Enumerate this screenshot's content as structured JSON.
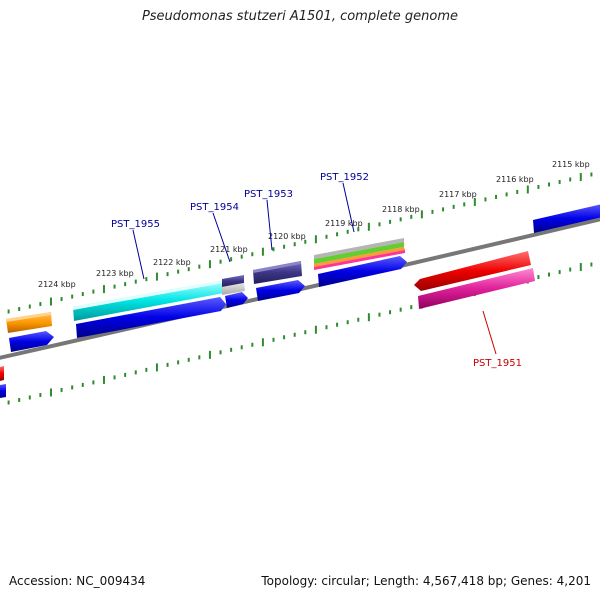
{
  "title": "Pseudomonas stutzeri A1501, complete genome",
  "footer": {
    "accession": "Accession: NC_009434",
    "summary": "Topology: circular; Length: 4,567,418 bp; Genes: 4,201"
  },
  "colors": {
    "backbone": "#777777",
    "ticks": "#2e8b2e",
    "forward_label": "#000099",
    "reverse_label": "#cc0000"
  },
  "scale_labels": [
    "2115 kbp",
    "2116 kbp",
    "2117 kbp",
    "2118 kbp",
    "2119 kbp",
    "2120 kbp",
    "2121 kbp",
    "2122 kbp",
    "2123 kbp",
    "2124 kbp"
  ],
  "gene_labels": [
    {
      "text": "PST_1955",
      "strand": "forward"
    },
    {
      "text": "PST_1954",
      "strand": "forward"
    },
    {
      "text": "PST_1953",
      "strand": "forward"
    },
    {
      "text": "PST_1952",
      "strand": "forward"
    },
    {
      "text": "PST_1951",
      "strand": "reverse"
    }
  ]
}
